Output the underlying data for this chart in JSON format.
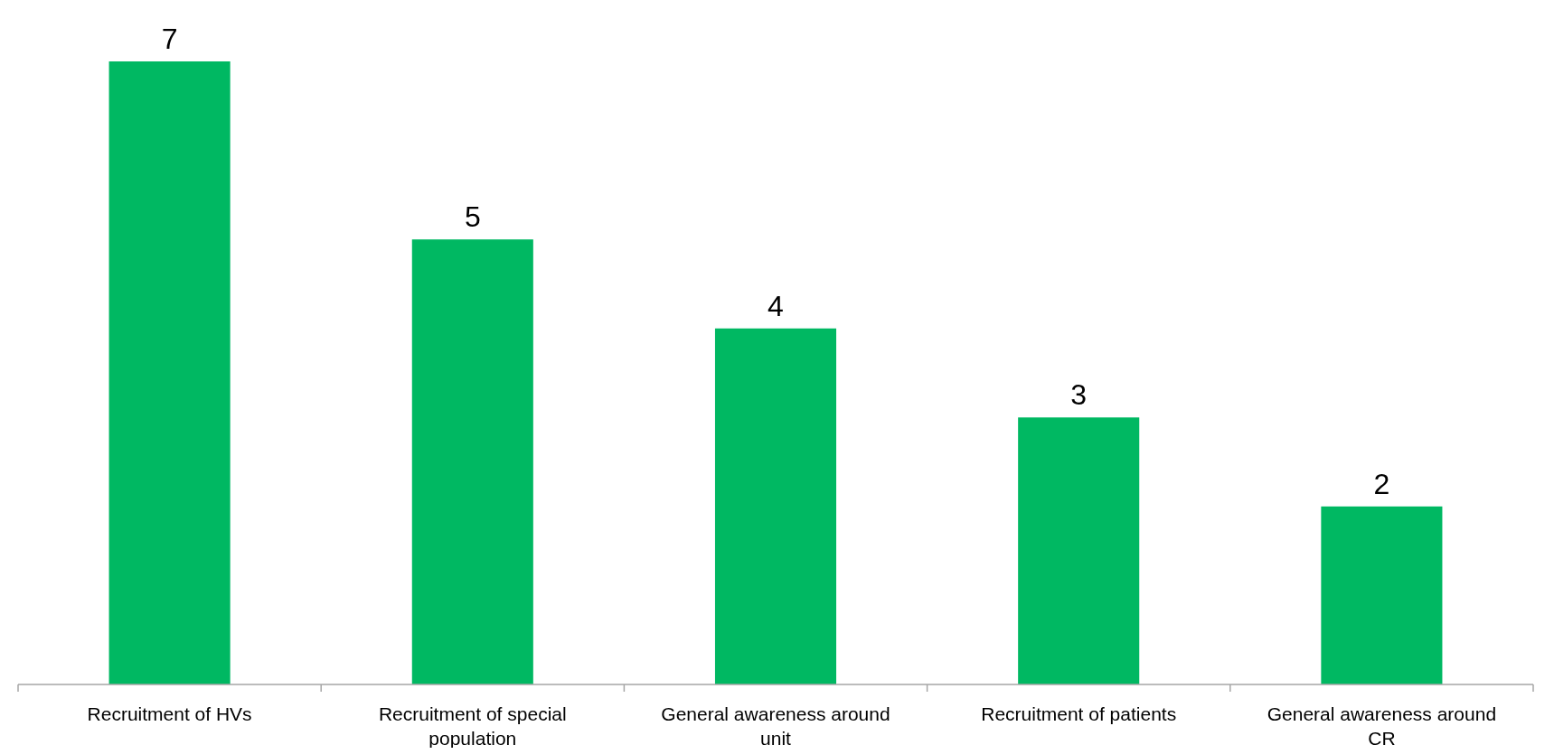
{
  "chart_data": {
    "type": "bar",
    "categories": [
      "Recruitment of HVs",
      "Recruitment of special population",
      "General awareness around unit",
      "Recruitment of patients",
      "General awareness around CR"
    ],
    "values": [
      7,
      5,
      4,
      3,
      2
    ],
    "color": "#00b862",
    "data_labels": true
  }
}
